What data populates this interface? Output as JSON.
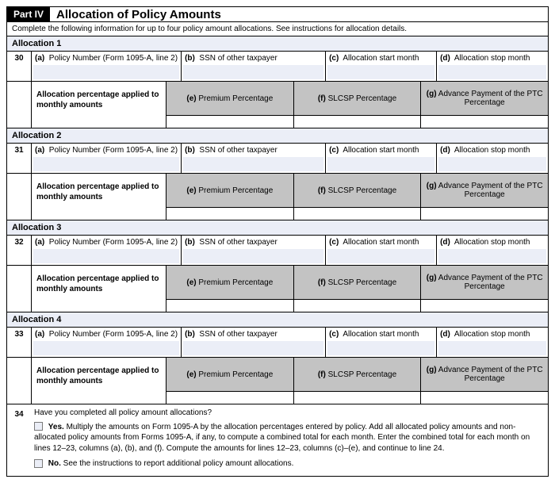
{
  "part": {
    "badge": "Part IV",
    "title": "Allocation of Policy Amounts"
  },
  "instructions": "Complete the following information for up to four policy amount allocations. See instructions for allocation details.",
  "columns": {
    "a": {
      "letter": "(a)",
      "label": "Policy Number (Form 1095-A, line 2)"
    },
    "b": {
      "letter": "(b)",
      "label": "SSN of other taxpayer"
    },
    "c": {
      "letter": "(c)",
      "label": "Allocation start month"
    },
    "d": {
      "letter": "(d)",
      "label": "Allocation stop month"
    }
  },
  "row2_label": "Allocation percentage applied to monthly amounts",
  "pct": {
    "e": {
      "letter": "(e)",
      "label": "Premium Percentage"
    },
    "f": {
      "letter": "(f)",
      "label": "SLCSP Percentage"
    },
    "g": {
      "letter": "(g)",
      "label": "Advance Payment of the PTC Percentage"
    }
  },
  "allocations": [
    {
      "title": "Allocation 1",
      "line": "30"
    },
    {
      "title": "Allocation 2",
      "line": "31"
    },
    {
      "title": "Allocation 3",
      "line": "32"
    },
    {
      "title": "Allocation 4",
      "line": "33"
    }
  ],
  "q34": {
    "line": "34",
    "question": "Have you completed all policy amount allocations?",
    "yes_label": "Yes.",
    "yes_text": "Multiply the amounts on Form 1095-A by the allocation percentages entered by policy. Add all allocated policy amounts and non-allocated policy amounts from Forms 1095-A, if any, to compute a combined total for each month. Enter the combined total for each month on lines 12–23, columns (a), (b), and (f). Compute the amounts for lines 12–23, columns (c)–(e), and continue to line 24.",
    "no_label": "No.",
    "no_text": "See the instructions to report additional policy amount allocations."
  },
  "colors": {
    "light_fill": "#ebeef7",
    "gray_fill": "#c3c3c3",
    "border": "#000000"
  }
}
